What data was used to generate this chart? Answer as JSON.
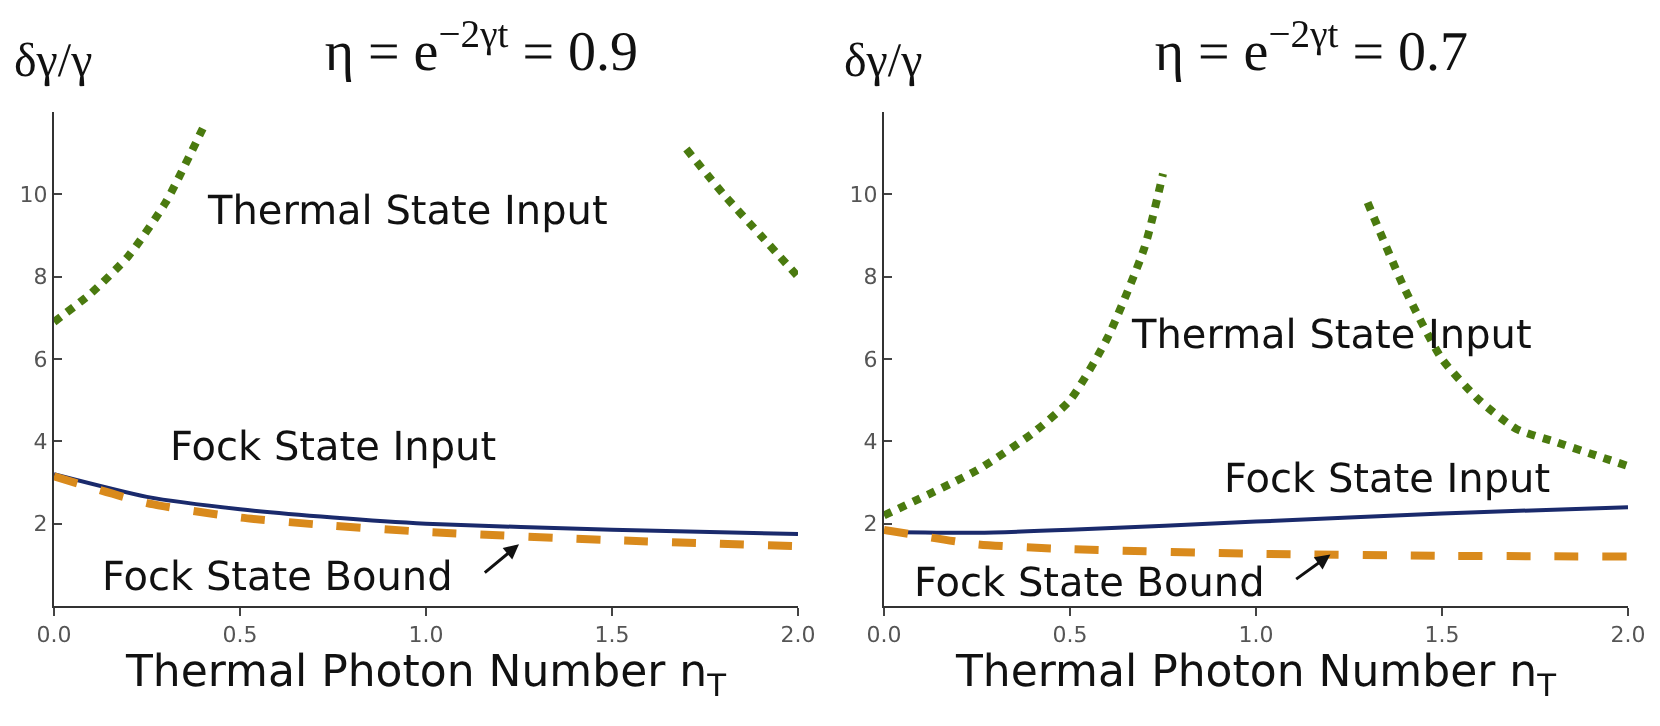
{
  "chart_data": [
    {
      "type": "line",
      "title": "η = e$^{−2γt}$ = 0.9",
      "xlabel": "Thermal Photon Number n$_{T}$",
      "ylabel": "δγ/γ",
      "xlim": [
        0,
        2
      ],
      "ylim": [
        0,
        12
      ],
      "xticks": [
        {
          "value": 0,
          "label": "0.0"
        },
        {
          "value": 0.5,
          "label": "0.5"
        },
        {
          "value": 1,
          "label": "1.0"
        },
        {
          "value": 1.5,
          "label": "1.5"
        },
        {
          "value": 2,
          "label": "2.0"
        }
      ],
      "yticks": [
        2,
        4,
        6,
        8,
        10
      ],
      "grid": false,
      "legend": false,
      "series": [
        {
          "name": "Thermal State Input",
          "color": "#4a7a0f",
          "line_style": "dotted",
          "x": [
            0,
            0.1,
            0.2,
            0.3,
            0.4,
            1.0,
            1.7,
            1.8,
            1.9,
            2.0
          ],
          "values": [
            6.9,
            7.6,
            8.5,
            9.8,
            11.6,
            null,
            11.1,
            10,
            9,
            8
          ]
        },
        {
          "name": "Fock State Input",
          "color": "#1a2a6c",
          "line_style": "solid",
          "x": [
            0,
            0.25,
            0.5,
            0.75,
            1,
            1.5,
            2
          ],
          "values": [
            3.2,
            2.65,
            2.35,
            2.15,
            2.0,
            1.85,
            1.75
          ]
        },
        {
          "name": "Fock State Bound",
          "color": "#d98a1c",
          "line_style": "dashed",
          "x": [
            0,
            0.25,
            0.5,
            0.75,
            1,
            1.5,
            2
          ],
          "values": [
            3.15,
            2.5,
            2.15,
            1.95,
            1.8,
            1.6,
            1.45
          ]
        }
      ]
    },
    {
      "type": "line",
      "title": "η = e$^{−2γt}$ = 0.7",
      "xlabel": "Thermal Photon Number n$_{T}$",
      "ylabel": "δγ/γ",
      "xlim": [
        0,
        2
      ],
      "ylim": [
        0,
        12
      ],
      "xticks": [
        {
          "value": 0,
          "label": "0.0"
        },
        {
          "value": 0.5,
          "label": "0.5"
        },
        {
          "value": 1,
          "label": "1.0"
        },
        {
          "value": 1.5,
          "label": "1.5"
        },
        {
          "value": 2,
          "label": "2.0"
        }
      ],
      "yticks": [
        2,
        4,
        6,
        8,
        10
      ],
      "grid": false,
      "legend": false,
      "series": [
        {
          "name": "Thermal State Input",
          "color": "#4a7a0f",
          "line_style": "dotted",
          "x": [
            0,
            0.25,
            0.4,
            0.5,
            0.6,
            0.7,
            0.75,
            1.0,
            1.3,
            1.4,
            1.5,
            1.6,
            1.7,
            1.8,
            1.9,
            2.0
          ],
          "values": [
            2.2,
            3.3,
            4.2,
            5.0,
            6.5,
            8.7,
            10.5,
            null,
            9.8,
            7.7,
            6.0,
            5.0,
            4.3,
            4.0,
            3.7,
            3.4
          ]
        },
        {
          "name": "Fock State Input",
          "color": "#1a2a6c",
          "line_style": "solid",
          "x": [
            0,
            0.25,
            0.5,
            1,
            1.5,
            2
          ],
          "values": [
            1.8,
            1.78,
            1.85,
            2.05,
            2.25,
            2.4
          ]
        },
        {
          "name": "Fock State Bound",
          "color": "#d98a1c",
          "line_style": "dashed",
          "x": [
            0,
            0.25,
            0.5,
            1,
            1.5,
            2
          ],
          "values": [
            1.85,
            1.5,
            1.38,
            1.27,
            1.22,
            1.2
          ]
        }
      ]
    }
  ]
}
